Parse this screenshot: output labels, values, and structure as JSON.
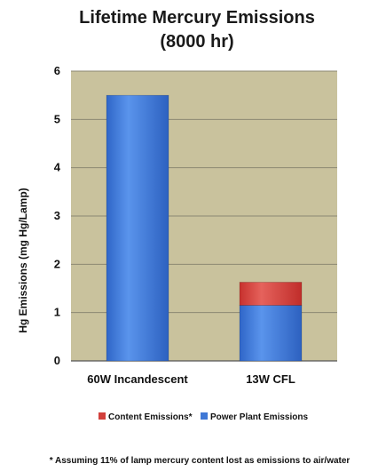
{
  "chart_data": {
    "type": "bar",
    "stacked": true,
    "title": "Lifetime Mercury Emissions",
    "subtitle": "(8000 hr)",
    "ylabel": "Hg Emissions (mg Hg/Lamp)",
    "xlabel": "",
    "categories": [
      "60W Incandescent",
      "13W CFL"
    ],
    "ylim": [
      0,
      6
    ],
    "yticks": [
      "0",
      "1",
      "2",
      "3",
      "4",
      "5",
      "6"
    ],
    "grid": true,
    "legend_position": "bottom",
    "series": [
      {
        "name": "Power Plant Emissions",
        "values": [
          5.5,
          1.15
        ],
        "color": "#3f78d6"
      },
      {
        "name": "Content Emissions*",
        "values": [
          0,
          0.48
        ],
        "color": "#d2403c"
      }
    ],
    "legend": [
      "Content Emissions*",
      "Power Plant Emissions"
    ],
    "plot_background": "#c9c29d",
    "footnote": "* Assuming 11% of lamp mercury content lost as emissions to air/water"
  }
}
